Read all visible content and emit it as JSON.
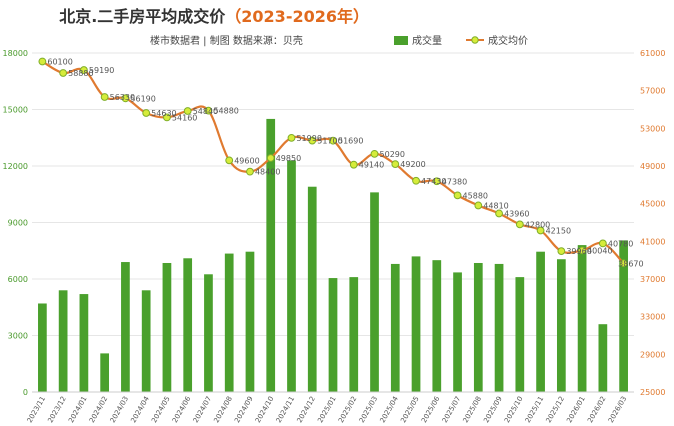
{
  "title": {
    "main": "北京.二手房平均成交价",
    "year": "（2023-2026年）"
  },
  "subtitle": "楼市数据君 | 制图    数据来源：贝壳",
  "legend": {
    "bar_label": "成交量",
    "line_label": "成交均价"
  },
  "colors": {
    "bar": "#4aa02c",
    "line": "#e07a30",
    "marker_fill": "#d6ec3a",
    "marker_stroke": "#7fae2a",
    "title_year": "#e06a1e"
  },
  "chart_data": {
    "type": "bar+line",
    "categories": [
      "2023/11",
      "2023/12",
      "2024/01",
      "2024/02",
      "2024/03",
      "2024/04",
      "2024/05",
      "2024/06",
      "2024/07",
      "2024/08",
      "2024/09",
      "2024/10",
      "2024/11",
      "2024/12",
      "2025/01",
      "2025/02",
      "2025/03",
      "2025/04",
      "2025/05",
      "2025/06",
      "2025/07",
      "2025/08",
      "2025/09",
      "2025/10",
      "2025/11",
      "2025/12",
      "2026/01",
      "2026/02",
      "2026/03"
    ],
    "series": [
      {
        "name": "成交量",
        "type": "bar",
        "axis": "left",
        "values": [
          4700,
          5400,
          5200,
          2050,
          6900,
          5400,
          6850,
          7100,
          6250,
          7350,
          7450,
          14500,
          12300,
          10900,
          6050,
          6100,
          10600,
          6800,
          7200,
          7000,
          6350,
          6850,
          6800,
          6100,
          7450,
          7050,
          7800,
          3600,
          8050
        ]
      },
      {
        "name": "成交均价",
        "type": "line",
        "axis": "right",
        "values": [
          60100,
          58880,
          59190,
          56330,
          56190,
          54630,
          54160,
          54840,
          54880,
          49600,
          48400,
          49850,
          51990,
          51700,
          51690,
          49140,
          50290,
          49200,
          47430,
          47380,
          45880,
          44810,
          43960,
          42800,
          42150,
          39960,
          40040,
          40780,
          38670
        ],
        "labels": [
          "60100",
          "58880",
          "59190",
          "56330",
          "56190",
          "54630",
          "54160",
          "54840",
          "54880",
          "49600",
          "48400",
          "49850",
          "51990",
          "51700",
          "51690",
          "49140",
          "50290",
          "49200",
          "47430",
          "47380",
          "45880",
          "44810",
          "43960",
          "42800",
          "42150",
          "39960",
          "40040",
          "40780",
          "38670"
        ]
      }
    ],
    "left_axis": {
      "ylim": [
        0,
        18000
      ],
      "ticks": [
        "0",
        "3000",
        "6000",
        "9000",
        "12000",
        "15000",
        "18000"
      ]
    },
    "right_axis": {
      "ylim": [
        25000,
        61000
      ],
      "ticks": [
        "25000",
        "29000",
        "33000",
        "37000",
        "41000",
        "45000",
        "49000",
        "53000",
        "57000",
        "61000"
      ]
    },
    "grid": true,
    "legend_position": "top-right"
  }
}
